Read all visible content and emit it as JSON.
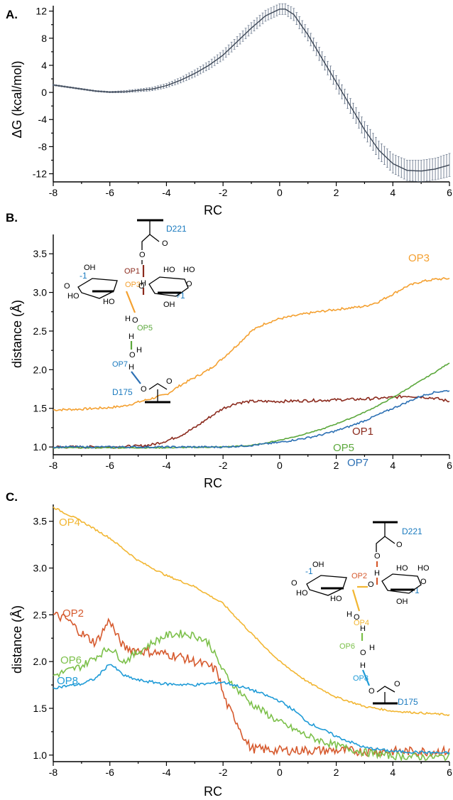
{
  "chart_data": [
    {
      "panel": "A.",
      "type": "line",
      "xlabel": "RC",
      "ylabel": "ΔG (kcal/mol)",
      "xlim": [
        -8,
        6
      ],
      "ylim": [
        -13.2,
        12.8
      ],
      "x_ticks": [
        "-8",
        "-6",
        "-4",
        "-2",
        "0",
        "2",
        "4",
        "6"
      ],
      "y_ticks": [
        "12",
        "8",
        "4",
        "0",
        "-4",
        "-8",
        "-12"
      ],
      "error_bars": true,
      "series": [
        {
          "color": "#3d4756",
          "x": [
            -8,
            -7.5,
            -7,
            -6.5,
            -6,
            -5.5,
            -5,
            -4.5,
            -4,
            -3.5,
            -3,
            -2.5,
            -2,
            -1.5,
            -1,
            -0.5,
            0,
            0.2,
            0.5,
            1,
            1.5,
            2,
            2.5,
            3,
            3.5,
            4,
            4.5,
            5,
            5.5,
            6
          ],
          "y": [
            1.1,
            0.8,
            0.5,
            0.2,
            0.05,
            0.1,
            0.3,
            0.5,
            1.0,
            1.8,
            2.8,
            4.0,
            5.5,
            7.5,
            9.5,
            11.3,
            12.3,
            12.3,
            11.5,
            8.5,
            5.0,
            1.5,
            -2.0,
            -5.5,
            -8.5,
            -10.5,
            -11.5,
            -11.6,
            -11.3,
            -10.7
          ],
          "err": [
            0.1,
            0.1,
            0.1,
            0.1,
            0.1,
            0.15,
            0.2,
            0.25,
            0.3,
            0.4,
            0.5,
            0.6,
            0.7,
            0.75,
            0.8,
            0.8,
            0.8,
            0.8,
            0.9,
            0.9,
            1.0,
            1.0,
            1.1,
            1.2,
            1.3,
            1.4,
            1.5,
            1.6,
            1.6,
            1.7
          ]
        }
      ]
    },
    {
      "panel": "B.",
      "type": "line",
      "xlabel": "RC",
      "ylabel": "distance (Å)",
      "xlim": [
        -8,
        6
      ],
      "ylim": [
        0.9,
        3.75
      ],
      "x_ticks": [
        "-8",
        "-6",
        "-4",
        "-2",
        "0",
        "2",
        "4",
        "6"
      ],
      "y_ticks": [
        "3.5",
        "3.0",
        "2.5",
        "2.0",
        "1.5",
        "1.0"
      ],
      "series": [
        {
          "name": "OP3",
          "color": "#f4a030",
          "x": [
            -8,
            -7,
            -6,
            -5.5,
            -5,
            -4.5,
            -4,
            -3.5,
            -3,
            -2.5,
            -2,
            -1.5,
            -1,
            -0.5,
            0,
            1,
            2,
            3,
            3.5,
            4,
            4.5,
            5,
            5.5,
            6
          ],
          "y": [
            1.48,
            1.49,
            1.51,
            1.53,
            1.58,
            1.63,
            1.68,
            1.8,
            1.9,
            2.0,
            2.15,
            2.32,
            2.5,
            2.6,
            2.66,
            2.73,
            2.78,
            2.82,
            2.88,
            2.98,
            3.08,
            3.14,
            3.17,
            3.18
          ],
          "noise": 0.015
        },
        {
          "name": "OP1",
          "color": "#8b2a1d",
          "x": [
            -8,
            -6,
            -5,
            -4.5,
            -4,
            -3.5,
            -3,
            -2.5,
            -2,
            -1.5,
            -1,
            0,
            1,
            2,
            3,
            4,
            4.5,
            5,
            5.5,
            6
          ],
          "y": [
            1.0,
            1.0,
            1.01,
            1.03,
            1.08,
            1.15,
            1.25,
            1.38,
            1.5,
            1.57,
            1.59,
            1.59,
            1.6,
            1.61,
            1.62,
            1.64,
            1.66,
            1.65,
            1.63,
            1.59
          ],
          "noise": 0.018
        },
        {
          "name": "OP5",
          "color": "#5ca83c",
          "x": [
            -8,
            -4,
            -2,
            -1,
            -0.5,
            0,
            0.5,
            1,
            1.5,
            2,
            2.5,
            3,
            3.5,
            4,
            4.5,
            5,
            5.5,
            6
          ],
          "y": [
            0.99,
            0.99,
            1.0,
            1.02,
            1.05,
            1.09,
            1.13,
            1.18,
            1.23,
            1.3,
            1.37,
            1.45,
            1.54,
            1.64,
            1.75,
            1.86,
            1.97,
            2.09
          ],
          "noise": 0.006
        },
        {
          "name": "OP7",
          "color": "#2b6fb3",
          "x": [
            -8,
            -4,
            -2,
            -1.5,
            -1,
            -0.5,
            0,
            0.5,
            1,
            1.5,
            2,
            2.5,
            3,
            3.5,
            4,
            4.5,
            5,
            5.5,
            6
          ],
          "y": [
            1.0,
            1.0,
            1.0,
            1.01,
            1.02,
            1.04,
            1.06,
            1.09,
            1.12,
            1.16,
            1.21,
            1.27,
            1.34,
            1.42,
            1.5,
            1.58,
            1.66,
            1.71,
            1.73
          ],
          "noise": 0.012
        }
      ]
    },
    {
      "panel": "C.",
      "type": "line",
      "xlabel": "RC",
      "ylabel": "distance (Å)",
      "xlim": [
        -8,
        6
      ],
      "ylim": [
        0.93,
        3.68
      ],
      "x_ticks": [
        "-8",
        "-6",
        "-4",
        "-2",
        "0",
        "2",
        "4",
        "6"
      ],
      "y_ticks": [
        "3.5",
        "3.0",
        "2.5",
        "2.0",
        "1.5",
        "1.0"
      ],
      "series": [
        {
          "name": "OP4",
          "color": "#f2b632",
          "x": [
            -8,
            -7,
            -6,
            -5,
            -4,
            -3,
            -2,
            -1,
            0,
            1,
            2,
            3,
            4,
            5,
            6
          ],
          "y": [
            3.65,
            3.5,
            3.32,
            3.08,
            2.92,
            2.8,
            2.62,
            2.3,
            2.0,
            1.78,
            1.62,
            1.52,
            1.47,
            1.45,
            1.43
          ],
          "noise": 0.01
        },
        {
          "name": "OP2",
          "color": "#d65a2e",
          "x": [
            -8,
            -7.5,
            -7,
            -6.5,
            -6,
            -5.8,
            -5.5,
            -5,
            -4.5,
            -4,
            -3.5,
            -3,
            -2.5,
            -2.2,
            -2,
            -1.8,
            -1.5,
            -1.2,
            -1,
            -0.5,
            0,
            1,
            2,
            3,
            4,
            5,
            6
          ],
          "y": [
            2.5,
            2.45,
            2.3,
            2.2,
            2.45,
            2.3,
            2.15,
            2.12,
            2.1,
            2.08,
            2.05,
            2.0,
            1.95,
            1.9,
            1.65,
            1.5,
            1.35,
            1.15,
            1.07,
            1.06,
            1.05,
            1.05,
            1.05,
            1.04,
            1.04,
            1.04,
            1.04
          ],
          "noise": 0.05
        },
        {
          "name": "OP6",
          "color": "#7cc04a",
          "x": [
            -8,
            -7.5,
            -7,
            -6.5,
            -6,
            -5.5,
            -5,
            -4.5,
            -4,
            -3.5,
            -3,
            -2.5,
            -2,
            -1.5,
            -1,
            -0.5,
            0,
            1,
            2,
            3,
            4,
            5,
            6
          ],
          "y": [
            1.85,
            1.9,
            1.95,
            2.05,
            2.15,
            2.0,
            2.1,
            2.2,
            2.28,
            2.3,
            2.28,
            2.2,
            1.9,
            1.7,
            1.55,
            1.45,
            1.35,
            1.2,
            1.1,
            1.03,
            0.99,
            0.98,
            0.98
          ],
          "noise": 0.04
        },
        {
          "name": "OP8",
          "color": "#1f9bd7",
          "x": [
            -8,
            -7,
            -6.5,
            -6,
            -5.5,
            -5,
            -4,
            -3,
            -2,
            -1.5,
            -1,
            -0.5,
            0,
            0.5,
            1,
            2,
            3,
            4,
            5,
            6
          ],
          "y": [
            1.72,
            1.76,
            1.82,
            1.98,
            1.85,
            1.8,
            1.76,
            1.75,
            1.78,
            1.74,
            1.7,
            1.64,
            1.58,
            1.48,
            1.35,
            1.2,
            1.08,
            1.04,
            1.03,
            1.02
          ],
          "noise": 0.015
        }
      ]
    }
  ],
  "structures": {
    "b": {
      "acid_top": "D221",
      "acid_bottom": "D175",
      "minus1": "-1",
      "plus1": "+1",
      "op_labels": [
        "OP1",
        "OP3",
        "OP5",
        "OP7"
      ],
      "atoms": [
        "O",
        "O",
        "OH",
        "HO",
        "HO",
        "HO",
        "OH",
        "HO",
        "O",
        "O",
        "H",
        "H",
        "O",
        "H",
        "H",
        "O",
        "H",
        "O",
        "O",
        "O",
        "OH",
        "H",
        "O"
      ]
    },
    "c": {
      "acid_top": "D221",
      "acid_bottom": "D175",
      "minus1": "-1",
      "plus1": "+1",
      "op_labels": [
        "OP2",
        "OP4",
        "OP6",
        "OP8"
      ]
    }
  }
}
